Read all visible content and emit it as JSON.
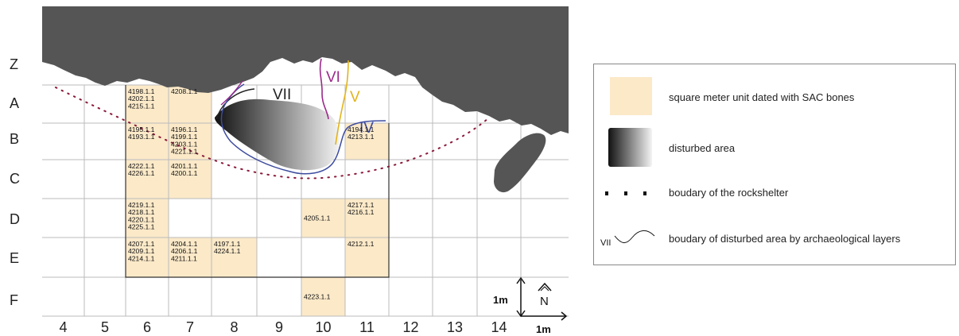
{
  "rows": [
    "Z",
    "A",
    "B",
    "C",
    "D",
    "E",
    "F"
  ],
  "columns": [
    "4",
    "5",
    "6",
    "7",
    "8",
    "9",
    "10",
    "11",
    "12",
    "13",
    "14"
  ],
  "dated_cells": [
    {
      "col": "6",
      "row": "A",
      "lines": [
        "4198.1.1",
        "4202.1.1",
        "4215.1.1"
      ]
    },
    {
      "col": "7",
      "row": "A",
      "lines": [
        "4208.1.1"
      ]
    },
    {
      "col": "6",
      "row": "B",
      "lines": [
        "4195.1.1",
        "4193.1.1"
      ]
    },
    {
      "col": "7",
      "row": "B",
      "lines": [
        "4196.1.1",
        "4199.1.1",
        "4203.1.1",
        "4221.1.1"
      ]
    },
    {
      "col": "11",
      "row": "B",
      "lines": [
        "4194.1.1",
        "4213.1.1"
      ]
    },
    {
      "col": "6",
      "row": "C",
      "lines": [
        "4222.1.1",
        "4226.1.1"
      ]
    },
    {
      "col": "7",
      "row": "C",
      "lines": [
        "4201.1.1",
        "4200.1.1"
      ]
    },
    {
      "col": "6",
      "row": "D",
      "lines": [
        "4219.1.1",
        "4218.1.1",
        "4220.1.1",
        "4225.1.1"
      ]
    },
    {
      "col": "10",
      "row": "D",
      "lines": [
        "4205.1.1"
      ]
    },
    {
      "col": "11",
      "row": "D",
      "lines": [
        "4217.1.1",
        "4216.1.1"
      ]
    },
    {
      "col": "6",
      "row": "E",
      "lines": [
        "4207.1.1",
        "4209.1.1",
        "4214.1.1"
      ]
    },
    {
      "col": "7",
      "row": "E",
      "lines": [
        "4204.1.1",
        "4206.1.1",
        "4211.1.1"
      ]
    },
    {
      "col": "8",
      "row": "E",
      "lines": [
        "4197.1.1",
        "4224.1.1"
      ]
    },
    {
      "col": "11",
      "row": "E",
      "lines": [
        "4212.1.1"
      ]
    },
    {
      "col": "10",
      "row": "F",
      "lines": [
        "4223.1.1"
      ]
    }
  ],
  "layers": [
    {
      "label": "VII",
      "color": "#222222"
    },
    {
      "label": "VI",
      "color": "#9b2a8a"
    },
    {
      "label": "V",
      "color": "#e3b31a"
    },
    {
      "label": "IV",
      "color": "#3c4a9e"
    }
  ],
  "scale": {
    "vertical": "1m",
    "horizontal": "1m",
    "north": "N"
  },
  "legend": {
    "dated": "square meter unit dated with SAC bones",
    "disturbed": "disturbed area",
    "boundary": "boudary of the rockshelter",
    "layers": "boudary of disturbed area by archaeological layers",
    "layers_sample": "VII"
  },
  "colors": {
    "dated_fill": "#fbe9c8",
    "rock": "#555555",
    "grid": "#bbbbbb",
    "dotted_boundary": "#8b1a3a"
  }
}
